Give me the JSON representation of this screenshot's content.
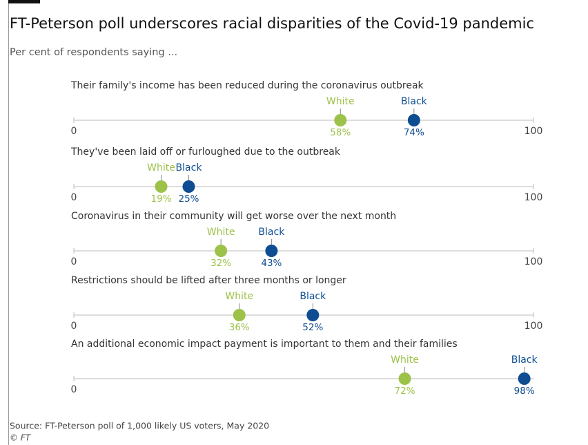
{
  "title": "FT-Peterson poll underscores racial disparities of the Covid-19 pandemic",
  "subtitle": "Per cent of respondents saying ...",
  "source": "Source: FT-Peterson poll of 1,000 likely US voters, May 2020",
  "credit": "© FT",
  "chart_data": [
    {
      "type": "dot",
      "title": "Their family's income has been reduced during the coronavirus outbreak",
      "series": [
        {
          "name": "White",
          "color": "#9dc24a",
          "values": [
            58
          ],
          "value_labels": [
            "58%"
          ]
        },
        {
          "name": "Black",
          "color": "#0f4d92",
          "values": [
            74
          ],
          "value_labels": [
            "74%"
          ]
        }
      ],
      "xlim": [
        0,
        100
      ],
      "xticks": [
        0,
        100
      ]
    },
    {
      "type": "dot",
      "title": "They've been laid off or furloughed due to the outbreak",
      "series": [
        {
          "name": "White",
          "color": "#9dc24a",
          "values": [
            19
          ],
          "value_labels": [
            "19%"
          ]
        },
        {
          "name": "Black",
          "color": "#0f4d92",
          "values": [
            25
          ],
          "value_labels": [
            "25%"
          ]
        }
      ],
      "xlim": [
        0,
        100
      ],
      "xticks": [
        0,
        100
      ]
    },
    {
      "type": "dot",
      "title": "Coronavirus in their community will get worse over the next month",
      "series": [
        {
          "name": "White",
          "color": "#9dc24a",
          "values": [
            32
          ],
          "value_labels": [
            "32%"
          ]
        },
        {
          "name": "Black",
          "color": "#0f4d92",
          "values": [
            43
          ],
          "value_labels": [
            "43%"
          ]
        }
      ],
      "xlim": [
        0,
        100
      ],
      "xticks": [
        0,
        100
      ]
    },
    {
      "type": "dot",
      "title": "Restrictions should be lifted after three months or longer",
      "series": [
        {
          "name": "White",
          "color": "#9dc24a",
          "values": [
            36
          ],
          "value_labels": [
            "36%"
          ]
        },
        {
          "name": "Black",
          "color": "#0f4d92",
          "values": [
            52
          ],
          "value_labels": [
            "52%"
          ]
        }
      ],
      "xlim": [
        0,
        100
      ],
      "xticks": [
        0,
        100
      ]
    },
    {
      "type": "dot",
      "title": "An additional economic impact payment is important to them and their families",
      "series": [
        {
          "name": "White",
          "color": "#9dc24a",
          "values": [
            72
          ],
          "value_labels": [
            "72%"
          ]
        },
        {
          "name": "Black",
          "color": "#0f4d92",
          "values": [
            98
          ],
          "value_labels": [
            "98%"
          ]
        }
      ],
      "xlim": [
        0,
        100
      ],
      "xticks": [
        0
      ]
    }
  ]
}
